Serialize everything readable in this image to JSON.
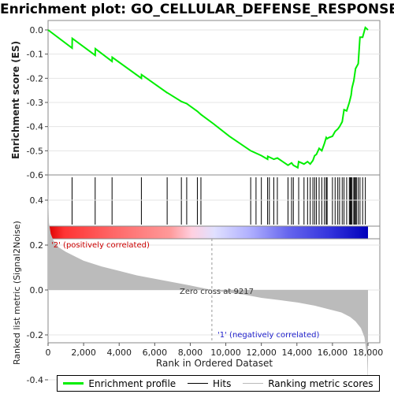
{
  "title": "Enrichment plot: GO_CELLULAR_DEFENSE_RESPONSE",
  "colors": {
    "enrichment_line": "#00ee00",
    "hits": "#000000",
    "metric_fill": "#bbbbbb",
    "pos_label": "#cc0000",
    "neg_label": "#2222cc",
    "heat_red": "#ee0000",
    "heat_blue": "#0000cc"
  },
  "legend": {
    "enrichment_label": "Enrichment profile",
    "hits_label": "Hits",
    "metric_label": "Ranking metric scores"
  },
  "chart_data": [
    {
      "type": "line",
      "ylabel": "Enrichment score (ES)",
      "ylim": [
        -0.6,
        0.03
      ],
      "yticks": [
        0.0,
        -0.1,
        -0.2,
        -0.3,
        -0.4,
        -0.5,
        -0.6
      ],
      "ytick_labels": [
        "0.0",
        "-0.1",
        "-0.2",
        "-0.3",
        "-0.4",
        "-0.5",
        "-0.6"
      ],
      "xlim": [
        0,
        18800
      ],
      "grid": true,
      "series": [
        {
          "name": "Enrichment profile",
          "x": [
            0,
            1350,
            1360,
            2650,
            2660,
            3600,
            3610,
            5250,
            5260,
            6700,
            6710,
            7500,
            7800,
            8400,
            8600,
            9300,
            10200,
            11400,
            11700,
            12000,
            12350,
            12360,
            12700,
            12900,
            13200,
            13500,
            13700,
            13800,
            14050,
            14100,
            14400,
            14600,
            14750,
            14900,
            15000,
            15100,
            15250,
            15400,
            15550,
            15650,
            15700,
            15800,
            16000,
            16150,
            16300,
            16400,
            16550,
            16650,
            16800,
            16950,
            17050,
            17100,
            17200,
            17300,
            17450,
            17550,
            17700,
            17850,
            18000
          ],
          "y": [
            0.0,
            -0.075,
            -0.035,
            -0.105,
            -0.078,
            -0.13,
            -0.113,
            -0.2,
            -0.185,
            -0.26,
            -0.26,
            -0.296,
            -0.305,
            -0.337,
            -0.35,
            -0.388,
            -0.44,
            -0.5,
            -0.51,
            -0.52,
            -0.535,
            -0.523,
            -0.535,
            -0.53,
            -0.545,
            -0.56,
            -0.55,
            -0.56,
            -0.57,
            -0.545,
            -0.555,
            -0.545,
            -0.555,
            -0.54,
            -0.52,
            -0.515,
            -0.49,
            -0.5,
            -0.47,
            -0.445,
            -0.45,
            -0.445,
            -0.44,
            -0.42,
            -0.41,
            -0.4,
            -0.38,
            -0.33,
            -0.335,
            -0.3,
            -0.27,
            -0.24,
            -0.21,
            -0.16,
            -0.14,
            -0.03,
            -0.03,
            0.01,
            0.0
          ]
        }
      ]
    },
    {
      "type": "scatter",
      "name": "Hits",
      "x": [
        1350,
        2650,
        3600,
        5250,
        6700,
        7500,
        7800,
        8400,
        8600,
        11400,
        11700,
        12000,
        12350,
        12450,
        12700,
        12900,
        13500,
        13700,
        13800,
        14100,
        14400,
        14600,
        14750,
        14900,
        15000,
        15100,
        15250,
        15400,
        15550,
        15650,
        15700,
        16000,
        16150,
        16300,
        16400,
        16550,
        16650,
        16800,
        16950,
        17000,
        17050,
        17100,
        17200,
        17250,
        17300,
        17350,
        17450,
        17550,
        17700,
        17850
      ]
    },
    {
      "type": "area",
      "ylabel": "Ranked list metric (Signal2Noise)",
      "xlabel": "Rank in Ordered Dataset",
      "ylim": [
        -0.45,
        0.45
      ],
      "yticks": [
        0.4,
        0.2,
        0.0,
        -0.2,
        -0.4
      ],
      "ytick_labels": [
        "0.4",
        "0.2",
        "0.0",
        "-0.2",
        "-0.4"
      ],
      "xlim": [
        0,
        18800
      ],
      "xticks": [
        0,
        2000,
        4000,
        6000,
        8000,
        10000,
        12000,
        14000,
        16000,
        18000
      ],
      "xtick_labels": [
        "0",
        "2,000",
        "4,000",
        "6,000",
        "8,000",
        "10,000",
        "12,000",
        "14,000",
        "16,000",
        "18,000"
      ],
      "series": [
        {
          "name": "Ranking metric scores",
          "x": [
            0,
            50,
            150,
            300,
            600,
            1000,
            1500,
            2000,
            3000,
            4000,
            5000,
            6000,
            7000,
            8000,
            9217,
            10000,
            11000,
            12000,
            13000,
            14000,
            15000,
            16000,
            16500,
            17000,
            17300,
            17600,
            17800,
            17950,
            18000
          ],
          "values": [
            0.43,
            0.3,
            0.25,
            0.22,
            0.19,
            0.17,
            0.15,
            0.13,
            0.105,
            0.085,
            0.065,
            0.05,
            0.035,
            0.02,
            0.0,
            -0.01,
            -0.02,
            -0.035,
            -0.045,
            -0.055,
            -0.07,
            -0.09,
            -0.1,
            -0.12,
            -0.14,
            -0.17,
            -0.21,
            -0.3,
            -0.42
          ]
        }
      ],
      "annotations": {
        "pos": "'2' (positively correlated)",
        "neg": "'1' (negatively correlated)",
        "zero": "Zero cross at 9217"
      },
      "zero_cross": 9217
    }
  ]
}
